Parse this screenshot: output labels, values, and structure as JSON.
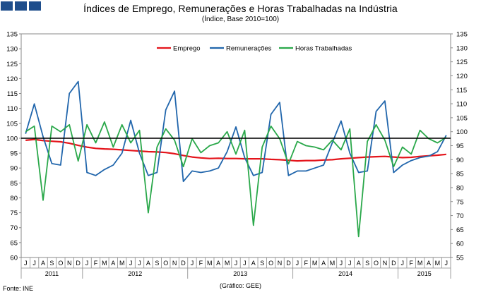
{
  "header": {
    "title": "Índices de Emprego, Remunerações e Horas Trabalhadas na Indústria",
    "subtitle": "(Índice, Base 2010=100)"
  },
  "footer": {
    "source": "Fonte: INE",
    "note": "(Gráfico: GEE)"
  },
  "colors": {
    "brand": "#1f4e8c",
    "emprego": "#e4141b",
    "remuneracoes": "#2166ac",
    "horas": "#2aa84a",
    "baseline": "#000000"
  },
  "chart_data": {
    "type": "line",
    "title": "Índices de Emprego, Remunerações e Horas Trabalhadas na Indústria",
    "subtitle": "(Índice, Base 2010=100)",
    "ylim_left": [
      60,
      135
    ],
    "ylim_right": [
      55,
      135
    ],
    "yticks_left": [
      60,
      65,
      70,
      75,
      80,
      85,
      90,
      95,
      100,
      105,
      110,
      115,
      120,
      125,
      130,
      135
    ],
    "yticks_right": [
      55,
      60,
      65,
      70,
      75,
      80,
      85,
      90,
      95,
      100,
      105,
      110,
      115,
      120,
      125,
      130,
      135
    ],
    "baseline": 100,
    "grid": false,
    "legend_position": "top",
    "month_labels": [
      "J",
      "J",
      "A",
      "S",
      "O",
      "N",
      "D",
      "J",
      "F",
      "M",
      "A",
      "M",
      "J",
      "J",
      "A",
      "S",
      "O",
      "N",
      "D",
      "J",
      "F",
      "M",
      "A",
      "M",
      "J",
      "J",
      "A",
      "S",
      "O",
      "N",
      "D",
      "J",
      "F",
      "M",
      "A",
      "M",
      "J",
      "J",
      "A",
      "S",
      "O",
      "N",
      "D",
      "J",
      "F",
      "M",
      "A",
      "M",
      "J"
    ],
    "years": [
      {
        "label": "2011",
        "start": 0,
        "end": 6
      },
      {
        "label": "2012",
        "start": 7,
        "end": 18
      },
      {
        "label": "2013",
        "start": 19,
        "end": 30
      },
      {
        "label": "2014",
        "start": 31,
        "end": 42
      },
      {
        "label": "2015",
        "start": 43,
        "end": 48
      }
    ],
    "series": [
      {
        "name": "Emprego",
        "axis": "left",
        "color": "#e4141b",
        "values": [
          99.3,
          99.6,
          99.2,
          99.0,
          98.8,
          98.3,
          97.6,
          97.0,
          96.6,
          96.4,
          96.3,
          96.1,
          95.9,
          95.7,
          95.5,
          95.4,
          95.2,
          94.8,
          94.2,
          93.7,
          93.4,
          93.2,
          93.3,
          93.2,
          93.2,
          93.1,
          93.1,
          93.1,
          92.9,
          92.8,
          92.6,
          92.4,
          92.5,
          92.5,
          92.7,
          92.8,
          93.1,
          93.3,
          93.5,
          93.7,
          93.8,
          93.9,
          93.7,
          93.5,
          93.6,
          93.9,
          94.1,
          94.3,
          94.6
        ]
      },
      {
        "name": "Remunerações",
        "axis": "left",
        "color": "#2166ac",
        "values": [
          101.5,
          111.5,
          100.5,
          91.5,
          91.0,
          115.0,
          119.0,
          88.5,
          87.5,
          89.5,
          91.0,
          95.0,
          106.0,
          95.0,
          87.5,
          88.5,
          109.5,
          115.8,
          85.5,
          89.0,
          88.5,
          89.0,
          90.0,
          95.5,
          103.8,
          93.5,
          87.5,
          88.5,
          108.0,
          112.0,
          87.5,
          89.0,
          89.0,
          90.0,
          91.0,
          98.5,
          105.8,
          95.0,
          88.5,
          89.0,
          109.0,
          112.5,
          88.5,
          91.0,
          92.5,
          93.5,
          94.0,
          95.5,
          101.0
        ]
      },
      {
        "name": "Horas Trabalhadas",
        "axis": "right",
        "color": "#2aa84a",
        "values": [
          100.0,
          102.0,
          75.5,
          102.0,
          100.0,
          102.5,
          89.5,
          102.5,
          96.0,
          103.5,
          94.5,
          102.5,
          96.0,
          100.5,
          71.0,
          94.5,
          101.0,
          97.0,
          87.5,
          97.5,
          92.5,
          95.0,
          96.0,
          100.0,
          92.0,
          100.5,
          66.5,
          94.5,
          102.0,
          97.5,
          88.5,
          96.5,
          95.0,
          94.5,
          93.5,
          97.0,
          93.5,
          101.0,
          62.5,
          96.5,
          102.5,
          97.0,
          87.5,
          94.5,
          92.0,
          100.5,
          97.5,
          96.0,
          98.0
        ]
      }
    ]
  }
}
